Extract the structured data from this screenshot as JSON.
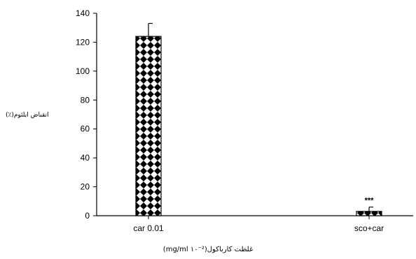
{
  "chart_data": {
    "type": "bar",
    "categories": [
      "car 0.01",
      "sco+car"
    ],
    "values": [
      124,
      3
    ],
    "errors": [
      9,
      3
    ],
    "annotations": [
      "",
      "***"
    ],
    "ylim": [
      0,
      140
    ],
    "yticks": [
      "0",
      "20",
      "40",
      "60",
      "80",
      "100",
      "120",
      "140"
    ],
    "ylabel": "انقباض ایلئوم(٪)",
    "xlabel": "غلظت کارباکول(mg/ml ۱۰⁻²)",
    "grid": false,
    "bar_fill": "checkered diamond pattern",
    "colors": {
      "bar_dark": "#000000",
      "bar_light": "#ffffff",
      "axis": "#000000"
    }
  }
}
